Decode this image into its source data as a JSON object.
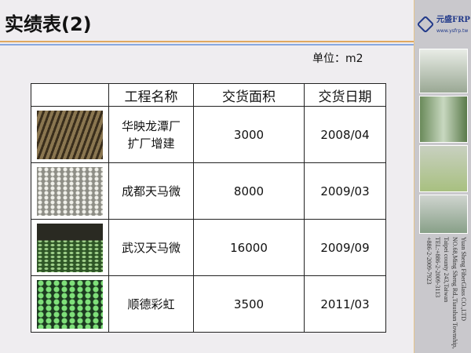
{
  "title": "实绩表(2)",
  "unit": "单位：m2",
  "logo": {
    "brand": "元盛FRP",
    "url": "www.ysfrp.tw",
    "mark": "YS"
  },
  "table": {
    "headers": [
      "",
      "工程名称",
      "交货面积",
      "交货日期"
    ],
    "rows": [
      {
        "name": "华映龙潭厂扩厂增建",
        "area": "3000",
        "date": "2008/04",
        "photo_color": "#6b5a3a"
      },
      {
        "name": "成都天马微",
        "area": "8000",
        "date": "2009/03",
        "photo_color": "#a8a8a0"
      },
      {
        "name": "武汉天马微",
        "area": "16000",
        "date": "2009/09",
        "photo_color": "#3e6a30"
      },
      {
        "name": "顺德彩虹",
        "area": "3500",
        "date": "2011/03",
        "photo_color": "#2f7a3a"
      }
    ]
  },
  "company": {
    "name": "Yuan Sheng FiberGlass CO.,LTD",
    "address1": "NO.68,Ming Sheng Rd.,Tiaushan Township,",
    "address2": "Taipei county 243,Taiwan",
    "tel1": "TEL:+886-2-2009-3113",
    "tel2": "+886-2-2009-7923"
  }
}
